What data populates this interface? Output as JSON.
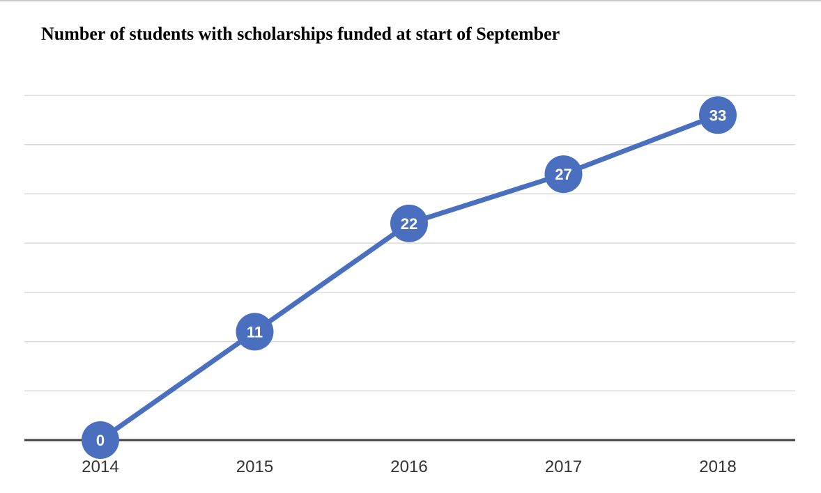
{
  "chart_data": {
    "type": "line",
    "title": "Number of students with scholarships funded at start of September",
    "categories": [
      "2014",
      "2015",
      "2016",
      "2017",
      "2018"
    ],
    "series": [
      {
        "values": [
          0,
          11,
          22,
          27,
          33
        ]
      }
    ],
    "data_labels": [
      "0",
      "11",
      "22",
      "27",
      "33"
    ],
    "ylim": [
      0,
      35
    ],
    "gridlines_y": [
      0,
      5,
      10,
      15,
      20,
      25,
      30,
      35
    ],
    "grid": true,
    "y_axis_labels_shown": false,
    "legend": "none",
    "colors": {
      "series": "#4a6fbf",
      "grid": "#d9d9d9",
      "baseline": "#404040",
      "tick_text": "#333333"
    }
  }
}
